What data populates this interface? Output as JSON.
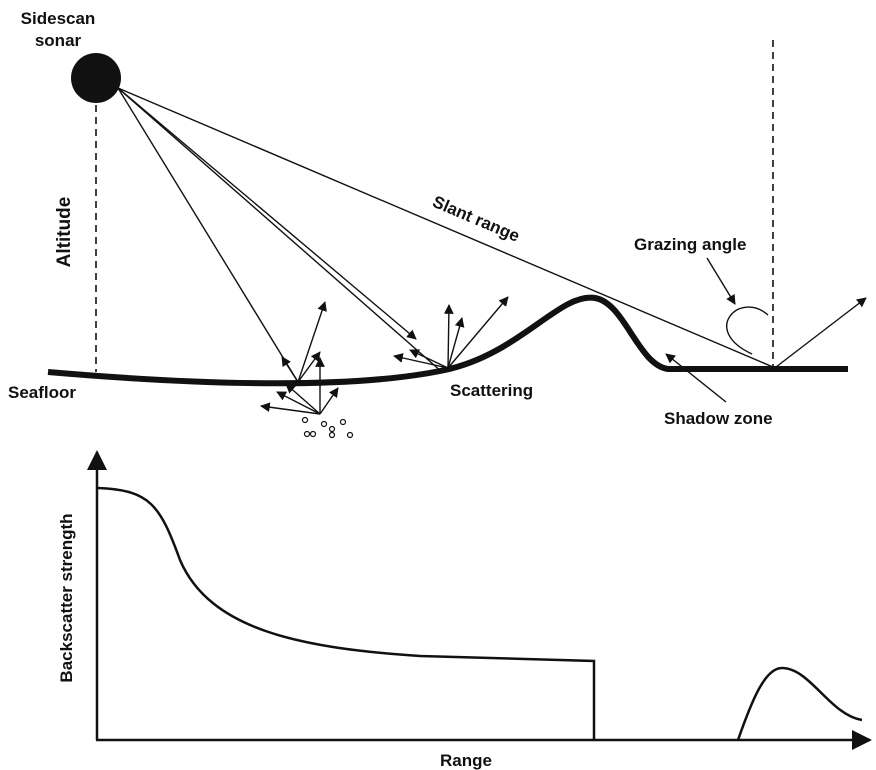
{
  "labels": {
    "sonar_line1": "Sidescan",
    "sonar_line2": "sonar",
    "altitude": "Altitude",
    "slant_range": "Slant range",
    "grazing_angle": "Grazing angle",
    "seafloor": "Seafloor",
    "scattering": "Scattering",
    "shadow_zone": "Shadow zone",
    "y_axis": "Backscatter strength",
    "x_axis": "Range"
  },
  "colors": {
    "ink": "#111111",
    "background": "#ffffff"
  }
}
